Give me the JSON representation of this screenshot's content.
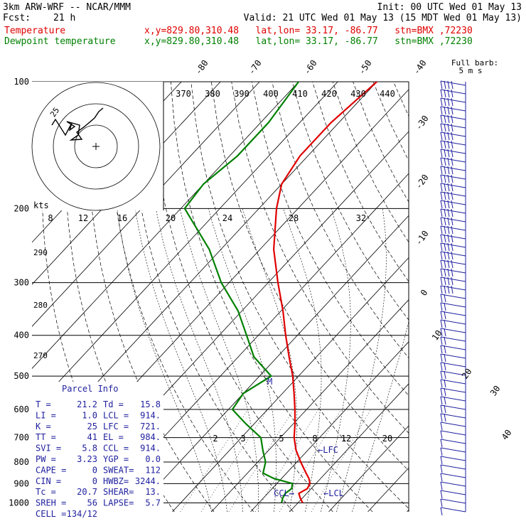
{
  "header": {
    "model": "3km ARW-WRF -- NCAR/MMM",
    "init": "Init: 00 UTC Wed 01 May 13",
    "fcst_label": "Fcst:",
    "fcst_hours": "21 h",
    "valid": "Valid: 21 UTC Wed 01 May 13 (15 MDT Wed 01 May 13)",
    "temperature_label": "Temperature",
    "dewpoint_label": "Dewpoint temperature",
    "location": "x,y=829.80,310.48   lat,lon= 33.17, -86.77   stn=BMX ,72230"
  },
  "colors": {
    "temperature": "#e00000",
    "dewpoint": "#008000",
    "barbs": "#1f1f9f",
    "text_blue": "#1f1f9f"
  },
  "chart_data": {
    "type": "line",
    "pressure_ticks": [
      "100",
      "200",
      "300",
      "400",
      "500",
      "600",
      "700",
      "800",
      "900",
      "1000"
    ],
    "isotherm_labels": [
      "-80",
      "-70",
      "-60",
      "-50",
      "-40",
      "-30",
      "-20",
      "-10",
      "0",
      "10",
      "20",
      "30",
      "40"
    ],
    "theta_labels": [
      "370",
      "380",
      "390",
      "400",
      "410",
      "420",
      "430",
      "440"
    ],
    "theta_left_labels": [
      "290",
      "280",
      "270"
    ],
    "mixing_ratio_labels": [
      "2",
      "3",
      "5",
      "8",
      "12",
      "20"
    ],
    "hodo_speed_labels": [
      "8",
      "12",
      "16",
      "20",
      "24",
      "28",
      "32"
    ],
    "hodo_unit": "kts",
    "hodo_ring_label": "25",
    "barb_legend": [
      "Full barb:",
      "5 m s"
    ],
    "series": [
      {
        "name": "Temperature",
        "points": [
          [
            1000,
            21.2
          ],
          [
            975,
            19.5
          ],
          [
            950,
            18.0
          ],
          [
            925,
            19.0
          ],
          [
            900,
            18.5
          ],
          [
            875,
            17.0
          ],
          [
            850,
            15.0
          ],
          [
            800,
            11.0
          ],
          [
            750,
            7.0
          ],
          [
            700,
            3.5
          ],
          [
            650,
            0.5
          ],
          [
            600,
            -3.0
          ],
          [
            550,
            -7.0
          ],
          [
            500,
            -11.5
          ],
          [
            450,
            -17.0
          ],
          [
            400,
            -23.0
          ],
          [
            350,
            -29.5
          ],
          [
            300,
            -37.5
          ],
          [
            250,
            -46.5
          ],
          [
            200,
            -55.5
          ],
          [
            175,
            -60.0
          ],
          [
            150,
            -62.0
          ],
          [
            125,
            -62.0
          ],
          [
            100,
            -60.0
          ]
        ]
      },
      {
        "name": "Dewpoint temperature",
        "points": [
          [
            1000,
            15.8
          ],
          [
            975,
            15.0
          ],
          [
            950,
            14.5
          ],
          [
            925,
            15.0
          ],
          [
            900,
            14.0
          ],
          [
            875,
            8.0
          ],
          [
            850,
            4.0
          ],
          [
            800,
            2.0
          ],
          [
            750,
            -1.5
          ],
          [
            700,
            -5.0
          ],
          [
            650,
            -12.0
          ],
          [
            600,
            -19.0
          ],
          [
            550,
            -20.0
          ],
          [
            500,
            -17.0
          ],
          [
            450,
            -26.0
          ],
          [
            400,
            -33.0
          ],
          [
            350,
            -41.0
          ],
          [
            300,
            -52.0
          ],
          [
            250,
            -63.0
          ],
          [
            200,
            -79.0
          ],
          [
            175,
            -80.0
          ],
          [
            150,
            -78.0
          ],
          [
            125,
            -78.0
          ],
          [
            100,
            -80.0
          ]
        ]
      }
    ],
    "markers": {
      "lfc": "←LFC",
      "lcl": "←LCL",
      "ccl": "CCL→",
      "el": "M"
    }
  },
  "parcel_info": {
    "title": "Parcel Info",
    "rows": [
      [
        "T   =",
        "21.2",
        "Td  =",
        "15.8"
      ],
      [
        "LI  =",
        "1.0",
        "LCL =",
        "914."
      ],
      [
        "K   =",
        "25",
        "LFC =",
        "721."
      ],
      [
        "TT  =",
        "41",
        "EL  =",
        "984."
      ],
      [
        "SVI =",
        "5.8",
        "CCL =",
        "914."
      ],
      [
        "PW  =",
        "3.23",
        "YGP =",
        "0.0"
      ],
      [
        "CAPE =",
        "0",
        "SWEAT=",
        "112"
      ],
      [
        "CIN  =",
        "0",
        "HWBZ=",
        "3244."
      ],
      [
        "Tc   =",
        "20.7",
        "SHEAR=",
        "13."
      ],
      [
        "SREH =",
        "56",
        "LAPSE=",
        "5.7"
      ],
      [
        "CELL =",
        "134/12",
        "",
        ""
      ]
    ]
  }
}
